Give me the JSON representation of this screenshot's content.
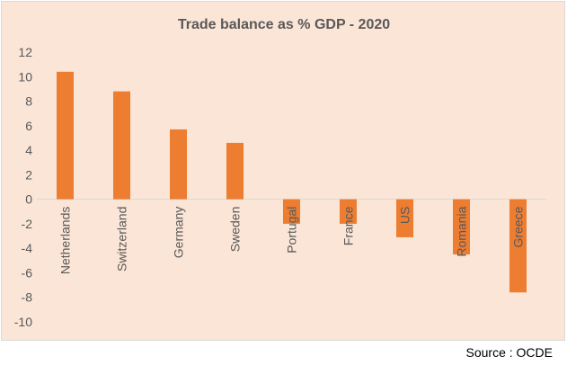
{
  "chart_data": {
    "type": "bar",
    "title": "Trade balance as % GDP - 2020",
    "categories": [
      "Netherlands",
      "Switzerland",
      "Germany",
      "Sweden",
      "Portugal",
      "France",
      "US",
      "Romania",
      "Greece"
    ],
    "values": [
      10.4,
      8.8,
      5.7,
      4.6,
      -2.0,
      -2.0,
      -3.1,
      -4.5,
      -7.6
    ],
    "ylim": [
      -10,
      12
    ],
    "yticks": [
      "12",
      "10",
      "8",
      "6",
      "4",
      "2",
      "0",
      "-2",
      "-4",
      "-6",
      "-8",
      "-10"
    ],
    "xlabel": "",
    "ylabel": "",
    "grid": false,
    "colors": {
      "bar": "#ED7D31",
      "background": "#FBE5D6",
      "axis": "#D9D9D9",
      "text": "#595959"
    }
  },
  "source": "Source : OCDE"
}
